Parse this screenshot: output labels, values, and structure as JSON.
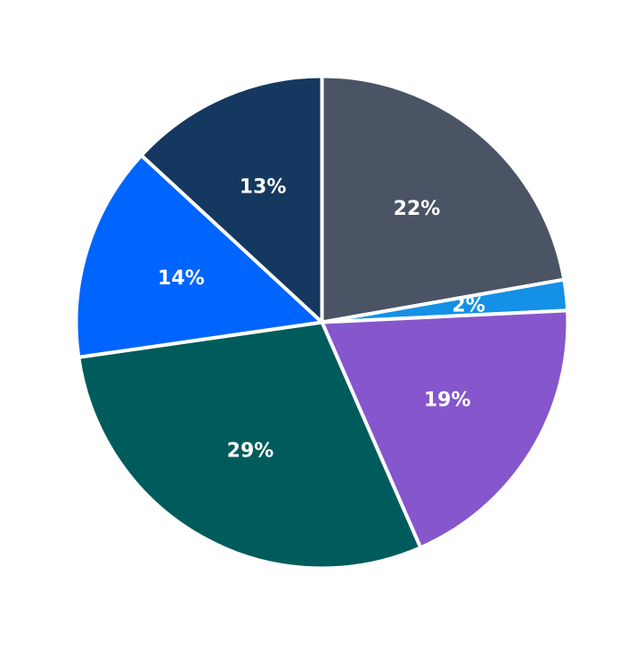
{
  "chart_data": {
    "type": "pie",
    "title": "",
    "start_angle_deg": 90,
    "direction": "clockwise",
    "legend": "none",
    "slices": [
      {
        "value": 22,
        "label": "22%",
        "color": "#4a5464"
      },
      {
        "value": 2,
        "label": "2%",
        "color": "#1490e6"
      },
      {
        "value": 19,
        "label": "19%",
        "color": "#8556cc"
      },
      {
        "value": 29,
        "label": "29%",
        "color": "#005c5c"
      },
      {
        "value": 14,
        "label": "14%",
        "color": "#0064ff"
      },
      {
        "value": 13,
        "label": "13%",
        "color": "#153860"
      }
    ]
  }
}
